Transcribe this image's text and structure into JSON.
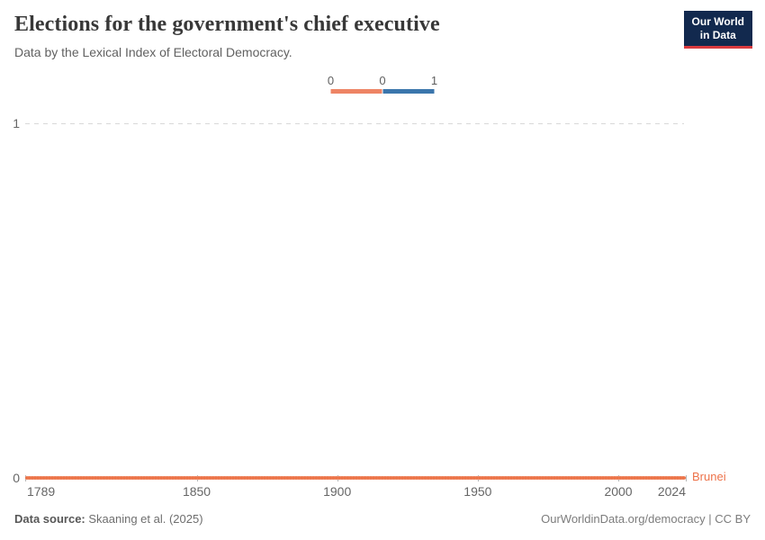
{
  "header": {
    "title": "Elections for the government's chief executive",
    "subtitle": "Data by the Lexical Index of Electoral Democracy.",
    "logo": {
      "line1": "Our World",
      "line2": "in Data"
    }
  },
  "legend": {
    "ticks": [
      "0",
      "0",
      "1"
    ],
    "segments": [
      {
        "name": "orange-segment",
        "color": "#ee8465",
        "range": [
          0,
          0
        ]
      },
      {
        "name": "blue-segment",
        "color": "#3b76ac",
        "range": [
          0,
          1
        ]
      }
    ]
  },
  "chart_data": {
    "type": "line",
    "title": "Elections for the government's chief executive",
    "subtitle": "Data by the Lexical Index of Electoral Democracy.",
    "series": [
      {
        "name": "Brunei",
        "color": "#ed7249",
        "x_start": 1789,
        "x_end": 2024,
        "value": 0
      }
    ],
    "x_ticks": [
      1789,
      1850,
      1900,
      1950,
      2000,
      2024
    ],
    "y_ticks": [
      "0",
      "1"
    ],
    "xlim": [
      1789,
      2024
    ],
    "ylim": [
      0,
      1
    ],
    "grid": "dashed horizontal gridline at y=1",
    "legend_position": "top-center"
  },
  "colors": {
    "series_orange": "#ed7249",
    "legend_orange": "#ee8465",
    "legend_blue": "#3b76ac",
    "logo_navy": "#12294e",
    "logo_red": "#d93a3f",
    "gridline": "#d9d9d9",
    "title_text": "#383838",
    "axis_text": "#666666"
  },
  "footer": {
    "source_label": "Data source:",
    "source_value": " Skaaning et al. (2025)",
    "attribution": "OurWorldinData.org/democracy | CC BY"
  }
}
